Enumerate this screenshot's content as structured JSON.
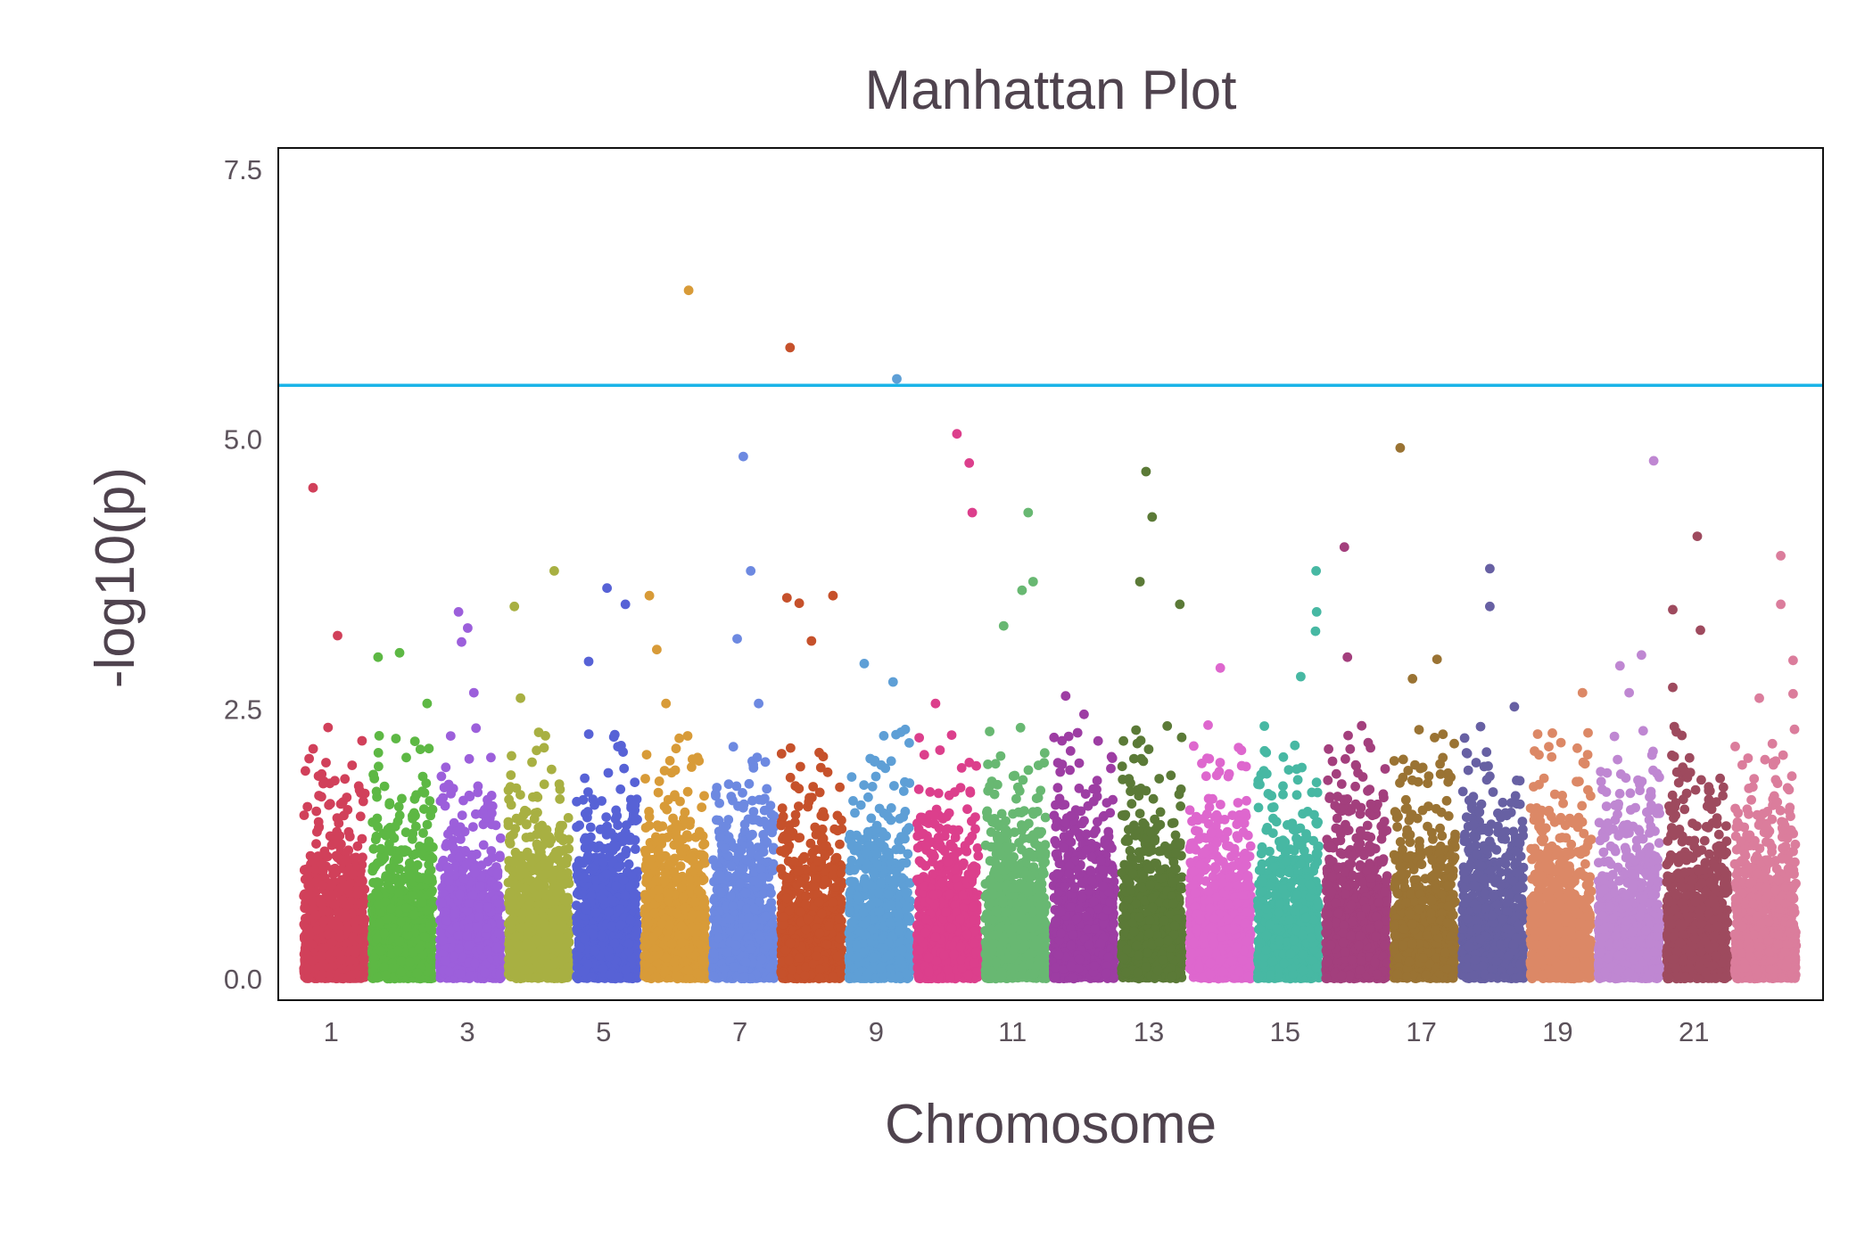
{
  "chart_data": {
    "type": "scatter",
    "title": "Manhattan Plot",
    "xlabel": "Chromosome",
    "ylabel": "-log10(p)",
    "ylim": [
      -0.2,
      7.7
    ],
    "yticks": [
      0.0,
      2.5,
      5.0,
      7.5
    ],
    "ytick_labels": [
      "0.0",
      "2.5",
      "5.0",
      "7.5"
    ],
    "xtick_chromosomes": [
      1,
      3,
      5,
      7,
      9,
      11,
      13,
      15,
      17,
      19,
      21
    ],
    "xtick_labels": [
      "1",
      "3",
      "5",
      "7",
      "9",
      "11",
      "13",
      "15",
      "17",
      "19",
      "21"
    ],
    "grid": false,
    "legend": "none",
    "threshold": {
      "value": 5.5,
      "color": "#1ab4e8"
    },
    "chromosomes": [
      {
        "chr": 1,
        "color": "#d1405a",
        "spikes": [
          [
            0.15,
            4.55
          ],
          [
            0.55,
            3.18
          ]
        ]
      },
      {
        "chr": 2,
        "color": "#5db844",
        "spikes": [
          [
            0.1,
            2.98
          ],
          [
            0.45,
            3.02
          ],
          [
            0.7,
            2.2
          ],
          [
            0.9,
            2.55
          ]
        ]
      },
      {
        "chr": 3,
        "color": "#9c5fdb",
        "spikes": [
          [
            0.3,
            3.4
          ],
          [
            0.45,
            3.25
          ],
          [
            0.55,
            2.65
          ],
          [
            0.35,
            3.12
          ]
        ]
      },
      {
        "chr": 4,
        "color": "#a8b042",
        "spikes": [
          [
            0.1,
            3.45
          ],
          [
            0.75,
            3.78
          ],
          [
            0.2,
            2.6
          ]
        ]
      },
      {
        "chr": 5,
        "color": "#5762d6",
        "spikes": [
          [
            0.5,
            3.62
          ],
          [
            0.8,
            3.47
          ],
          [
            0.2,
            2.94
          ]
        ]
      },
      {
        "chr": 6,
        "color": "#d89b38",
        "spikes": [
          [
            0.72,
            6.38
          ],
          [
            0.08,
            3.55
          ],
          [
            0.2,
            3.05
          ],
          [
            0.35,
            2.55
          ]
        ]
      },
      {
        "chr": 7,
        "color": "#6d89e1",
        "spikes": [
          [
            0.5,
            4.84
          ],
          [
            0.62,
            3.78
          ],
          [
            0.4,
            3.15
          ],
          [
            0.75,
            2.55
          ]
        ]
      },
      {
        "chr": 8,
        "color": "#c6512b",
        "spikes": [
          [
            0.15,
            5.85
          ],
          [
            0.1,
            3.53
          ],
          [
            0.3,
            3.48
          ],
          [
            0.85,
            3.55
          ],
          [
            0.5,
            3.13
          ]
        ]
      },
      {
        "chr": 9,
        "color": "#5e9fd6",
        "spikes": [
          [
            0.78,
            5.56
          ],
          [
            0.25,
            2.92
          ],
          [
            0.72,
            2.75
          ]
        ]
      },
      {
        "chr": 10,
        "color": "#dc3f8c",
        "spikes": [
          [
            0.65,
            5.05
          ],
          [
            0.85,
            4.78
          ],
          [
            0.9,
            4.32
          ],
          [
            0.3,
            2.55
          ]
        ]
      },
      {
        "chr": 11,
        "color": "#68b872",
        "spikes": [
          [
            0.7,
            4.32
          ],
          [
            0.78,
            3.68
          ],
          [
            0.6,
            3.6
          ],
          [
            0.3,
            3.27
          ]
        ]
      },
      {
        "chr": 12,
        "color": "#9d3da3",
        "spikes": [
          [
            0.2,
            2.62
          ],
          [
            0.5,
            2.45
          ]
        ]
      },
      {
        "chr": 13,
        "color": "#5b7a37",
        "spikes": [
          [
            0.4,
            4.7
          ],
          [
            0.5,
            4.28
          ],
          [
            0.3,
            3.68
          ],
          [
            0.95,
            3.47
          ]
        ]
      },
      {
        "chr": 14,
        "color": "#de67ce",
        "spikes": [
          [
            0.5,
            2.88
          ],
          [
            0.3,
            2.35
          ]
        ]
      },
      {
        "chr": 15,
        "color": "#47b8a3",
        "spikes": [
          [
            0.95,
            3.78
          ],
          [
            0.96,
            3.4
          ],
          [
            0.94,
            3.22
          ],
          [
            0.7,
            2.8
          ]
        ]
      },
      {
        "chr": 16,
        "color": "#a33f7d",
        "spikes": [
          [
            0.3,
            4.0
          ],
          [
            0.35,
            2.98
          ]
        ]
      },
      {
        "chr": 17,
        "color": "#9a7333",
        "spikes": [
          [
            0.1,
            4.92
          ],
          [
            0.7,
            2.96
          ],
          [
            0.3,
            2.78
          ]
        ]
      },
      {
        "chr": 18,
        "color": "#6760a3",
        "spikes": [
          [
            0.45,
            3.8
          ],
          [
            0.45,
            3.45
          ],
          [
            0.85,
            2.52
          ]
        ]
      },
      {
        "chr": 19,
        "color": "#dc8866",
        "spikes": [
          [
            0.85,
            2.65
          ],
          [
            0.3,
            2.15
          ]
        ]
      },
      {
        "chr": 20,
        "color": "#bf87d2",
        "spikes": [
          [
            0.9,
            4.8
          ],
          [
            0.7,
            3.0
          ],
          [
            0.35,
            2.9
          ],
          [
            0.5,
            2.65
          ]
        ]
      },
      {
        "chr": 21,
        "color": "#9e4a5e",
        "spikes": [
          [
            0.5,
            4.1
          ],
          [
            0.55,
            3.23
          ],
          [
            0.1,
            3.42
          ],
          [
            0.1,
            2.7
          ]
        ]
      },
      {
        "chr": 22,
        "color": "#db7d9c",
        "spikes": [
          [
            0.75,
            3.92
          ],
          [
            0.75,
            3.47
          ],
          [
            0.95,
            2.95
          ],
          [
            0.95,
            2.64
          ],
          [
            0.4,
            2.6
          ]
        ]
      }
    ]
  }
}
